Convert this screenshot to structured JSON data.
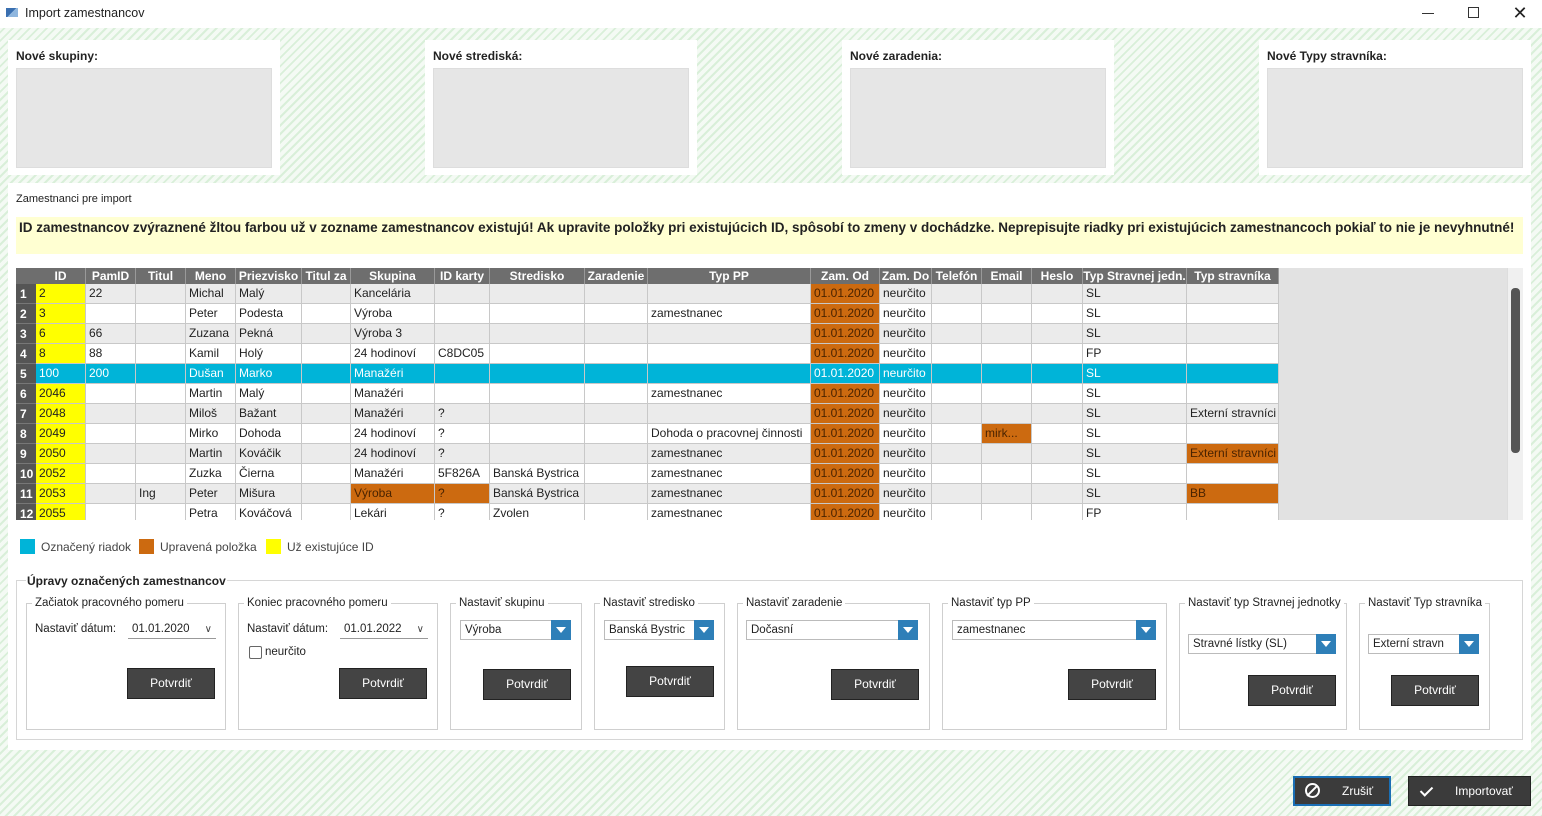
{
  "window": {
    "title": "Import zamestnancov"
  },
  "panels": [
    {
      "title": "Nové skupiny:"
    },
    {
      "title": "Nové strediská:"
    },
    {
      "title": "Nové zaradenia:"
    },
    {
      "title": "Nové Typy stravníka:"
    }
  ],
  "section_label": "Zamestnanci pre import",
  "warning": "ID zamestnancov zvýraznené žltou farbou už v zozname zamestnancov existujú! Ak upravite položky pri existujúcich ID, spôsobí to zmeny v dochádzke. Neprepisujte riadky pri existujúcich zamestnancoch pokiaľ to nie je nevyhnutné!",
  "table": {
    "columns": [
      "ID",
      "PamID",
      "Titul",
      "Meno",
      "Priezvisko",
      "Titul za",
      "Skupina",
      "ID karty",
      "Stredisko",
      "Zaradenie",
      "Typ PP",
      "Zam. Od",
      "Zam. Do",
      "Telefón",
      "Email",
      "Heslo",
      "Typ Stravnej jedn.",
      "Typ stravníka"
    ],
    "rows": [
      {
        "number": "1",
        "existing": true,
        "edited": [
          11
        ],
        "cells": [
          "2",
          "22",
          null,
          "Michal",
          "Malý",
          null,
          "Kancelária",
          null,
          null,
          null,
          null,
          "01.01.2020",
          "neurčito",
          null,
          null,
          null,
          "SL",
          null
        ]
      },
      {
        "number": "2",
        "existing": true,
        "edited": [
          11
        ],
        "cells": [
          "3",
          null,
          null,
          "Peter",
          "Podesta",
          null,
          "Výroba",
          null,
          null,
          null,
          "zamestnanec",
          "01.01.2020",
          "neurčito",
          null,
          null,
          null,
          "SL",
          null
        ]
      },
      {
        "number": "3",
        "existing": true,
        "edited": [
          11
        ],
        "cells": [
          "6",
          "66",
          null,
          "Zuzana",
          "Pekná",
          null,
          "Výroba 3",
          null,
          null,
          null,
          null,
          "01.01.2020",
          "neurčito",
          null,
          null,
          null,
          "SL",
          null
        ]
      },
      {
        "number": "4",
        "existing": true,
        "edited": [
          11
        ],
        "cells": [
          "8",
          "88",
          null,
          "Kamil",
          "Holý",
          null,
          "24 hodinoví",
          "C8DC05",
          null,
          null,
          null,
          "01.01.2020",
          "neurčito",
          null,
          null,
          null,
          "FP",
          null
        ]
      },
      {
        "number": "5",
        "selected": true,
        "cells": [
          "100",
          "200",
          null,
          "Dušan",
          "Marko",
          null,
          "Manažéri",
          null,
          null,
          null,
          null,
          "01.01.2020",
          "neurčito",
          null,
          null,
          null,
          "SL",
          null
        ]
      },
      {
        "number": "6",
        "existing": true,
        "edited": [
          11
        ],
        "cells": [
          "2046",
          null,
          null,
          "Martin",
          "Malý",
          null,
          "Manažéri",
          null,
          null,
          null,
          "zamestnanec",
          "01.01.2020",
          "neurčito",
          null,
          null,
          null,
          "SL",
          null
        ]
      },
      {
        "number": "7",
        "existing": true,
        "edited": [
          11
        ],
        "cells": [
          "2048",
          null,
          null,
          "Miloš",
          "Bažant",
          null,
          "Manažéri",
          "?",
          null,
          null,
          null,
          "01.01.2020",
          "neurčito",
          null,
          null,
          null,
          "SL",
          "Externí stravníci"
        ]
      },
      {
        "number": "8",
        "existing": true,
        "edited": [
          11,
          14
        ],
        "cells": [
          "2049",
          null,
          null,
          "Mirko",
          "Dohoda",
          null,
          "24 hodinoví",
          "?",
          null,
          null,
          "Dohoda o pracovnej činnosti",
          "01.01.2020",
          "neurčito",
          null,
          "mirk...",
          null,
          "SL",
          null
        ]
      },
      {
        "number": "9",
        "existing": true,
        "edited": [
          11,
          17
        ],
        "cells": [
          "2050",
          null,
          null,
          "Martin",
          "Kováčik",
          null,
          "24 hodinoví",
          "?",
          null,
          null,
          "zamestnanec",
          "01.01.2020",
          "neurčito",
          null,
          null,
          null,
          "SL",
          "Externí stravníci"
        ]
      },
      {
        "number": "10",
        "existing": true,
        "edited": [
          11
        ],
        "cells": [
          "2052",
          null,
          null,
          "Zuzka",
          "Čierna",
          null,
          "Manažéri",
          "5F826A",
          "Banská Bystrica",
          null,
          "zamestnanec",
          "01.01.2020",
          "neurčito",
          null,
          null,
          null,
          "SL",
          null
        ]
      },
      {
        "number": "11",
        "existing": true,
        "edited": [
          6,
          7,
          11,
          17
        ],
        "cells": [
          "2053",
          null,
          "Ing",
          "Peter",
          "Mišura",
          null,
          "Výroba",
          "?",
          "Banská Bystrica",
          null,
          "zamestnanec",
          "01.01.2020",
          "neurčito",
          null,
          null,
          null,
          "SL",
          "BB"
        ]
      },
      {
        "number": "12",
        "existing": true,
        "edited": [
          11
        ],
        "cells": [
          "2055",
          null,
          null,
          "Petra",
          "Kováčová",
          null,
          "Lekári",
          "?",
          "Zvolen",
          null,
          "zamestnanec",
          "01.01.2020",
          "neurčito",
          null,
          null,
          null,
          "FP",
          null
        ]
      }
    ]
  },
  "legend": [
    {
      "label": "Označený riadok",
      "color": "#00b4d8"
    },
    {
      "label": "Upravená položka",
      "color": "#cc6a10"
    },
    {
      "label": "Už existujúce ID",
      "color": "#ffff00"
    }
  ],
  "edits": {
    "title": "Úpravy označených zamestnancov",
    "groups": [
      {
        "title": "Začiatok pracovného pomeru",
        "label": "Nastaviť dátum:",
        "value": "01.01.2020",
        "button": "Potvrdiť"
      },
      {
        "title": "Koniec pracovného pomeru",
        "label": "Nastaviť dátum:",
        "value": "01.01.2022",
        "checkbox": "neurčito",
        "button": "Potvrdiť"
      },
      {
        "title": "Nastaviť skupinu",
        "value": "Výroba",
        "button": "Potvrdiť"
      },
      {
        "title": "Nastaviť stredisko",
        "value": "Banská Bystric",
        "button": "Potvrdiť"
      },
      {
        "title": "Nastaviť zaradenie",
        "value": "Dočasní",
        "button": "Potvrdiť"
      },
      {
        "title": "Nastaviť typ PP",
        "value": "zamestnanec",
        "button": "Potvrdiť"
      },
      {
        "title": "Nastaviť typ Stravnej jednotky",
        "value": "Stravné lístky (SL)",
        "button": "Potvrdiť"
      },
      {
        "title": "Nastaviť Typ stravníka",
        "value": "Externí stravn",
        "button": "Potvrdiť"
      }
    ]
  },
  "footer": {
    "cancel": "Zrušiť",
    "import": "Importovať"
  }
}
